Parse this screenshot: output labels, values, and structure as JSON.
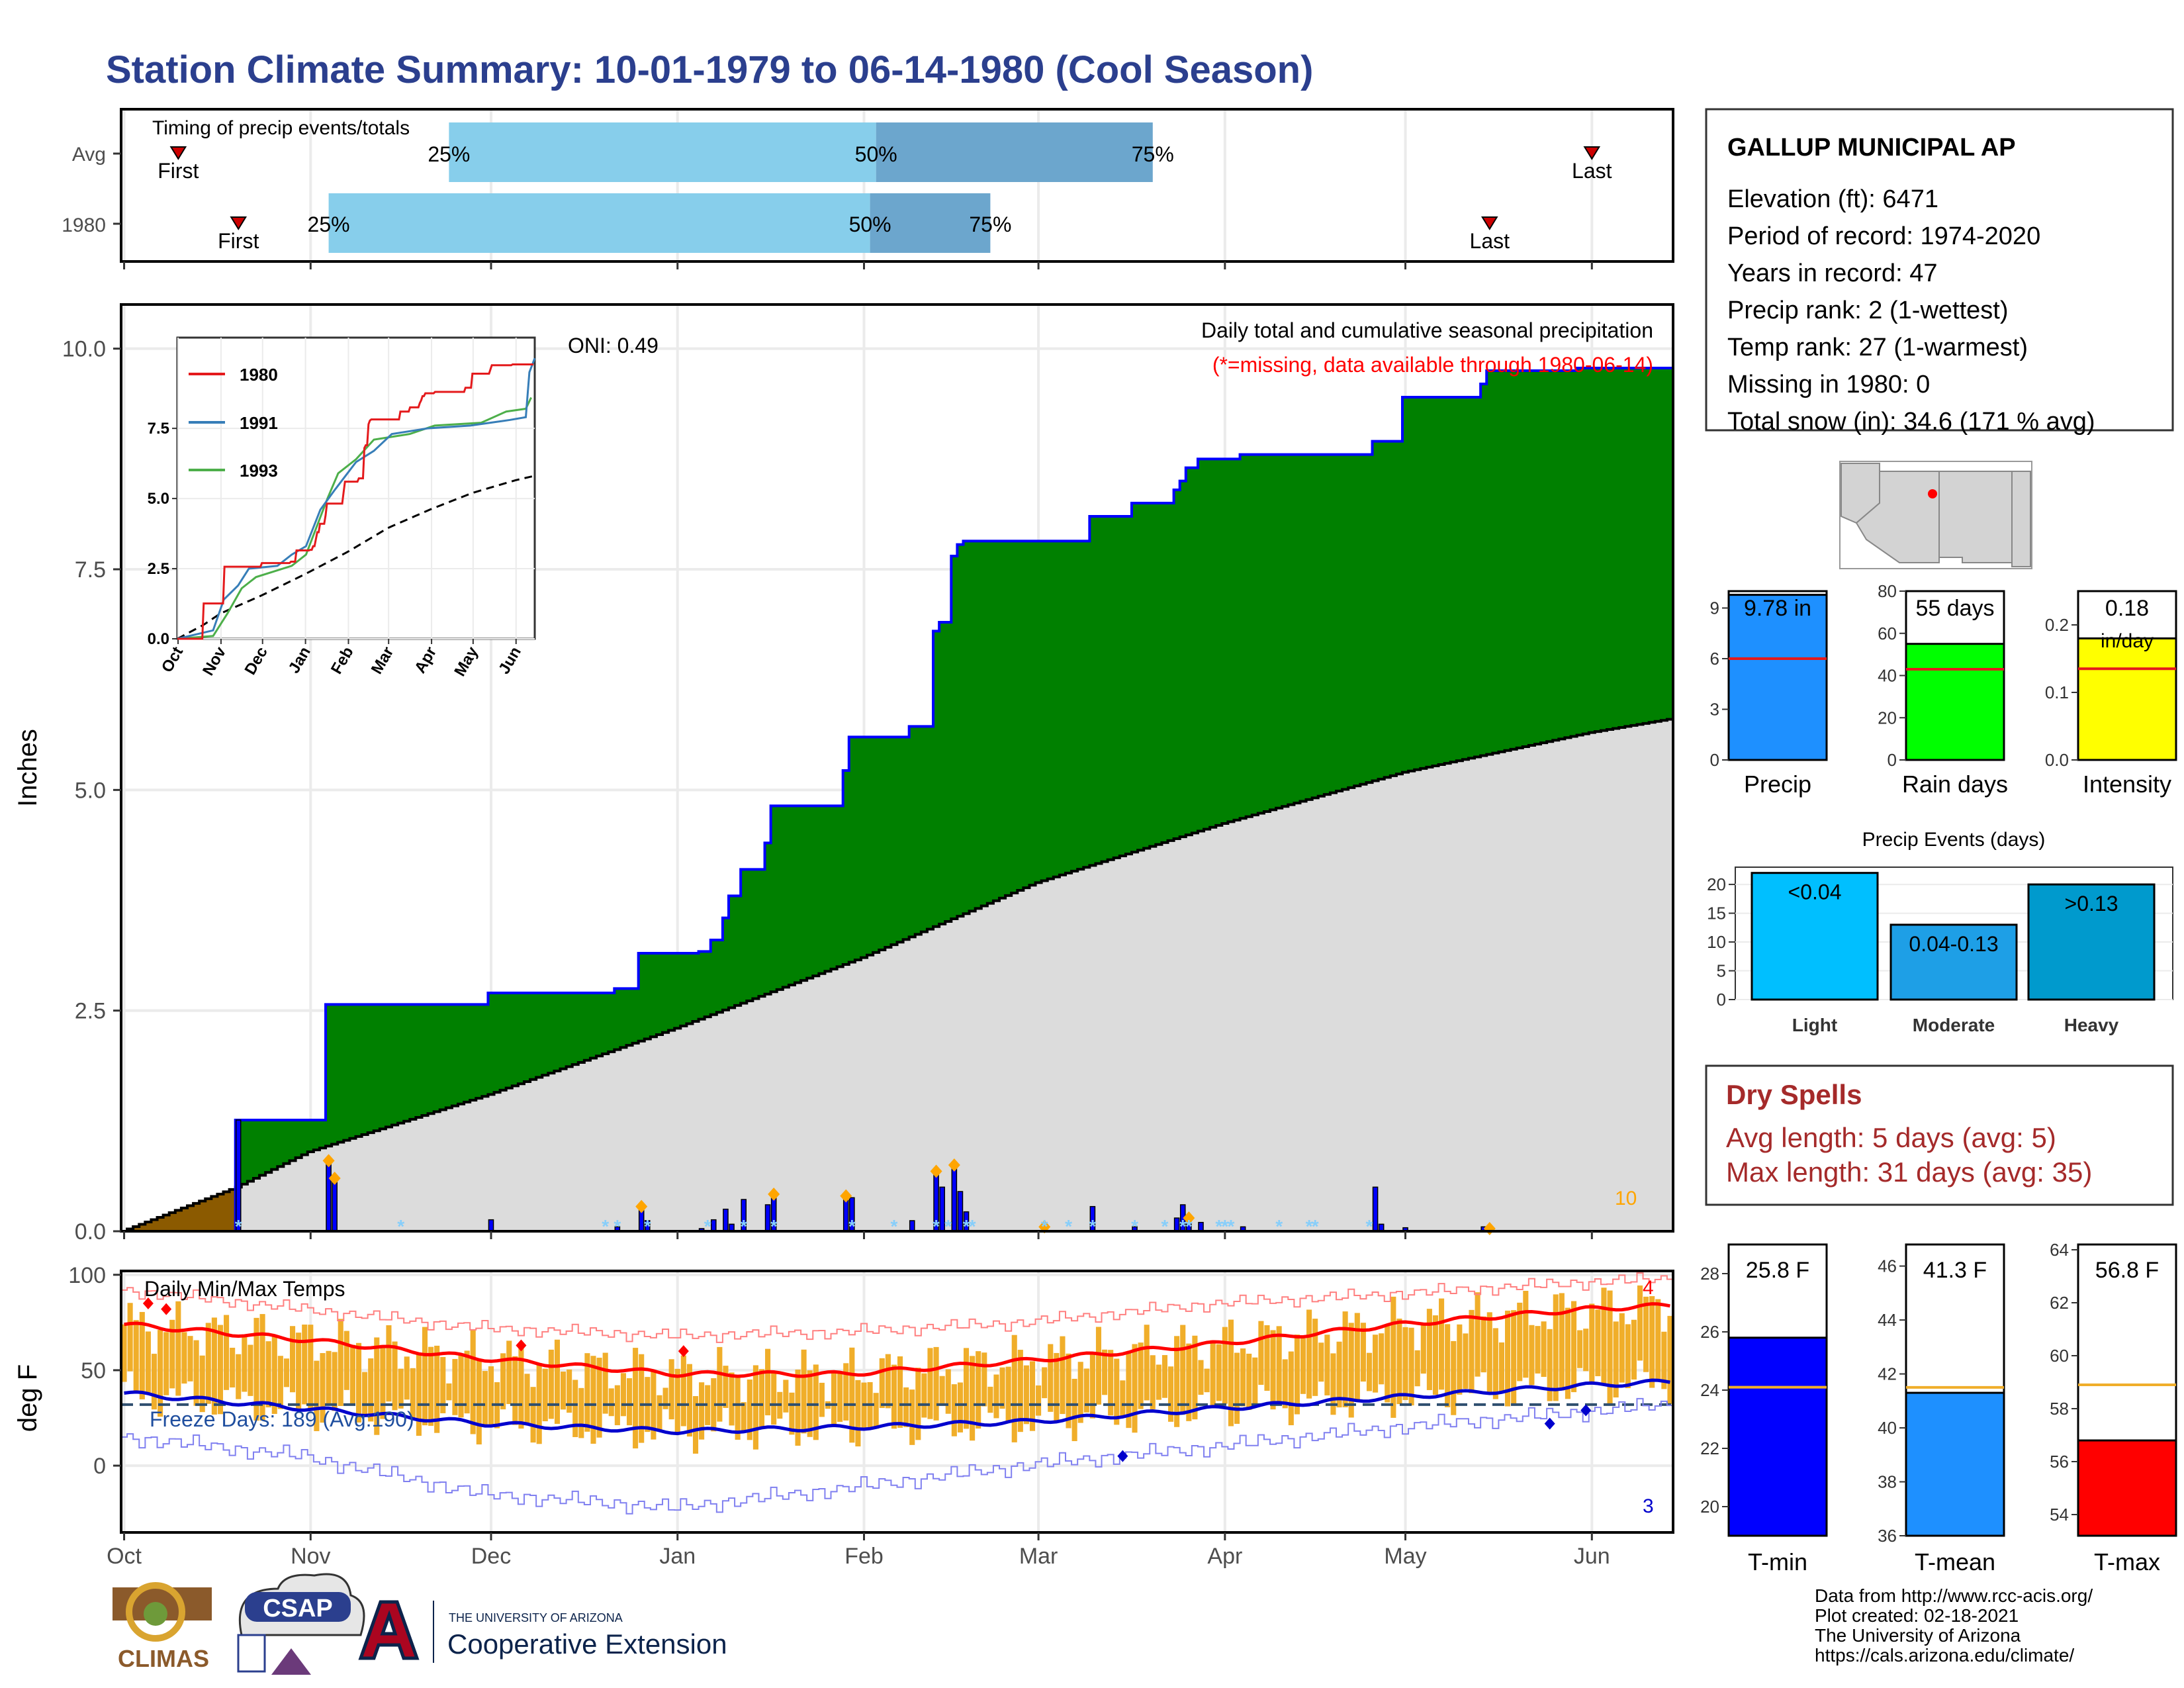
{
  "page": {
    "title": "Station Climate Summary: 10-01-1979 to 06-14-1980 (Cool Season)",
    "title_color": "#2B3F8E"
  },
  "timing": {
    "label": "Timing of precip events/totals",
    "rows": [
      {
        "label": "Avg",
        "first_date": "1979-10-10",
        "p25_date": "1979-11-24",
        "p50_date": "1980-02-03",
        "p75_date": "1980-03-20",
        "last_date": "1980-06-01"
      },
      {
        "label": "1980",
        "first_date": "1979-10-20",
        "p25_date": "1979-11-04",
        "p50_date": "1980-02-02",
        "p75_date": "1980-02-22",
        "last_date": "1980-05-15"
      }
    ],
    "first_label": "First",
    "last_label": "Last",
    "p25_label": "25%",
    "p50_label": "50%",
    "p75_label": "75%",
    "light_color": "#87CEEB",
    "dark_color": "#6CA6CD"
  },
  "precip": {
    "ylabel": "Inches",
    "ylim": [
      0,
      10.5
    ],
    "yticks": [
      0.0,
      2.5,
      5.0,
      7.5,
      10.0
    ],
    "ytick_labels": [
      "0.0",
      "2.5",
      "5.0",
      "7.5",
      "10.0"
    ],
    "oni_label": "ONI: 0.49",
    "note1": "Daily total and cumulative seasonal precipitation",
    "note2": "(*=missing, data available through 1980-06-14)",
    "note2_color": "#FF0000",
    "corner_count": "10",
    "corner_count_color": "#FFA500",
    "fill_above_color": "#008000",
    "fill_below_color": "#DCDCDC",
    "fill_deficit_color": "#8B5A00",
    "cum_line_color": "#0000FF",
    "avg_line_color": "#000000",
    "bar_color": "#0000FF"
  },
  "months": {
    "labels": [
      "Oct",
      "Nov",
      "Dec",
      "Jan",
      "Feb",
      "Mar",
      "Apr",
      "May",
      "Jun"
    ],
    "dates": [
      "1979-10-01",
      "1979-11-01",
      "1979-12-01",
      "1980-01-01",
      "1980-02-01",
      "1980-03-01",
      "1980-04-01",
      "1980-05-01",
      "1980-06-01"
    ],
    "end_date": "1980-06-14"
  },
  "inset": {
    "yticks": [
      "0.0",
      "2.5",
      "5.0",
      "7.5"
    ],
    "xticks": [
      "Oct",
      "Nov",
      "Dec",
      "Jan",
      "Feb",
      "Mar",
      "Apr",
      "May",
      "Jun"
    ],
    "legend": [
      {
        "name": "1980",
        "color": "#E41A1C"
      },
      {
        "name": "1991",
        "color": "#377EB8"
      },
      {
        "name": "1993",
        "color": "#4DAF4A"
      }
    ]
  },
  "station": {
    "name": "GALLUP MUNICIPAL AP",
    "lines": [
      "Elevation (ft): 6471",
      "Period of record: 1974-2020",
      "Years in record: 47",
      "Precip rank: 2 (1-wettest)",
      "Temp rank: 27 (1-warmest)",
      "Missing in 1980: 0",
      "Total snow (in): 34.6 (171 % avg)"
    ]
  },
  "summary_bars": [
    {
      "name": "Precip",
      "value": 9.78,
      "avg": 6.0,
      "ymax": 10.0,
      "ticks": [
        "0",
        "3",
        "6",
        "9"
      ],
      "tick_vals": [
        0,
        3,
        6,
        9
      ],
      "label": "9.78 in",
      "color": "#1E90FF"
    },
    {
      "name": "Rain days",
      "value": 55,
      "avg": 43,
      "ymax": 80,
      "ticks": [
        "0",
        "20",
        "40",
        "60",
        "80"
      ],
      "tick_vals": [
        0,
        20,
        40,
        60,
        80
      ],
      "label": "55 days",
      "color": "#00FF00"
    },
    {
      "name": "Intensity",
      "value": 0.18,
      "avg": 0.135,
      "ymax": 0.25,
      "ticks": [
        "0.0",
        "0.1",
        "0.2"
      ],
      "tick_vals": [
        0,
        0.1,
        0.2
      ],
      "label": "0.18",
      "label2": "in/day",
      "color": "#FFFF00"
    }
  ],
  "events": {
    "title": "Precip Events (days)",
    "categories": [
      "Light",
      "Moderate",
      "Heavy"
    ],
    "values": [
      22,
      13,
      20
    ],
    "labels": [
      "<0.04",
      "0.04-0.13",
      ">0.13"
    ],
    "ticks": [
      "0",
      "5",
      "10",
      "15",
      "20"
    ],
    "colors": [
      "#00BFFF",
      "#1E9FE6",
      "#009ACD"
    ]
  },
  "dry": {
    "title": "Dry Spells",
    "avg_line": "Avg length: 5 days (avg: 5)",
    "max_line": "Max length: 31 days (avg: 35)",
    "color": "#A52A2A"
  },
  "temps": {
    "label": "Daily Min/Max Temps",
    "ylabel": "deg F",
    "ylim": [
      -35,
      102
    ],
    "yticks": [
      0,
      50,
      100
    ],
    "ytick_labels": [
      "0",
      "50",
      "100"
    ],
    "freeze_label": "Freeze Days: 189 (Avg:190)",
    "freeze_color": "#1F4E9E",
    "top_count": "4",
    "bottom_count": "3",
    "bar_color": "#F0AE2A",
    "max_avg_color": "#FF0000",
    "min_avg_color": "#0000CD",
    "record_max_color": "#FF8080",
    "record_min_color": "#8080F0"
  },
  "temp_bars": [
    {
      "name": "T-min",
      "value": 25.8,
      "avg": 24.1,
      "ymin": 19.0,
      "ymax": 29.0,
      "ticks": [
        "20",
        "22",
        "24",
        "26",
        "28"
      ],
      "tick_vals": [
        20,
        22,
        24,
        26,
        28
      ],
      "label": "25.8 F",
      "color": "#0000FF"
    },
    {
      "name": "T-mean",
      "value": 41.3,
      "avg": 41.5,
      "ymin": 36.0,
      "ymax": 46.8,
      "ticks": [
        "36",
        "38",
        "40",
        "42",
        "44",
        "46"
      ],
      "tick_vals": [
        36,
        38,
        40,
        42,
        44,
        46
      ],
      "label": "41.3 F",
      "color": "#1E90FF"
    },
    {
      "name": "T-max",
      "value": 56.8,
      "avg": 58.9,
      "ymin": 53.2,
      "ymax": 64.2,
      "ticks": [
        "54",
        "56",
        "58",
        "60",
        "62",
        "64"
      ],
      "tick_vals": [
        54,
        56,
        58,
        60,
        62,
        64
      ],
      "label": "56.8 F",
      "color": "#FF0000"
    }
  ],
  "credits": {
    "lines": [
      "Data from http://www.rcc-acis.org/",
      "Plot created: 02-18-2021",
      "The University of Arizona",
      "https://cals.arizona.edu/climate/"
    ],
    "climas": "CLIMAS",
    "csap": "CSAP",
    "ua_small": "THE UNIVERSITY OF ARIZONA",
    "ua_big": "Cooperative Extension"
  },
  "chart_data": {
    "type": "area",
    "title": "Daily total and cumulative seasonal precipitation",
    "ylabel": "Inches",
    "ylim": [
      0,
      10.5
    ],
    "cumulative_steps": [
      {
        "date": "1979-10-20",
        "value": 1.26
      },
      {
        "date": "1979-11-04",
        "value": 2.57
      },
      {
        "date": "1979-12-01",
        "value": 2.7
      },
      {
        "date": "1979-12-22",
        "value": 2.75
      },
      {
        "date": "1979-12-26",
        "value": 3.15
      },
      {
        "date": "1980-01-05",
        "value": 3.17
      },
      {
        "date": "1980-01-07",
        "value": 3.3
      },
      {
        "date": "1980-01-09",
        "value": 3.55
      },
      {
        "date": "1980-01-10",
        "value": 3.8
      },
      {
        "date": "1980-01-12",
        "value": 4.1
      },
      {
        "date": "1980-01-16",
        "value": 4.4
      },
      {
        "date": "1980-01-17",
        "value": 4.82
      },
      {
        "date": "1980-01-29",
        "value": 5.22
      },
      {
        "date": "1980-01-30",
        "value": 5.6
      },
      {
        "date": "1980-02-09",
        "value": 5.72
      },
      {
        "date": "1980-02-13",
        "value": 6.8
      },
      {
        "date": "1980-02-14",
        "value": 6.9
      },
      {
        "date": "1980-02-16",
        "value": 7.65
      },
      {
        "date": "1980-02-17",
        "value": 7.78
      },
      {
        "date": "1980-02-18",
        "value": 7.82
      },
      {
        "date": "1980-03-10",
        "value": 8.1
      },
      {
        "date": "1980-03-17",
        "value": 8.25
      },
      {
        "date": "1980-03-24",
        "value": 8.4
      },
      {
        "date": "1980-03-25",
        "value": 8.5
      },
      {
        "date": "1980-03-26",
        "value": 8.65
      },
      {
        "date": "1980-03-28",
        "value": 8.75
      },
      {
        "date": "1980-04-04",
        "value": 8.8
      },
      {
        "date": "1980-04-26",
        "value": 8.95
      },
      {
        "date": "1980-05-01",
        "value": 9.45
      },
      {
        "date": "1980-05-14",
        "value": 9.6
      },
      {
        "date": "1980-05-15",
        "value": 9.75
      },
      {
        "date": "1980-05-30",
        "value": 9.78
      }
    ],
    "avg_cumulative": [
      {
        "date": "1979-10-01",
        "value": 0.0
      },
      {
        "date": "1979-10-20",
        "value": 0.5
      },
      {
        "date": "1979-11-01",
        "value": 0.9
      },
      {
        "date": "1979-12-01",
        "value": 1.55
      },
      {
        "date": "1980-01-01",
        "value": 2.3
      },
      {
        "date": "1980-02-01",
        "value": 3.1
      },
      {
        "date": "1980-03-01",
        "value": 3.95
      },
      {
        "date": "1980-04-01",
        "value": 4.62
      },
      {
        "date": "1980-05-01",
        "value": 5.2
      },
      {
        "date": "1980-06-01",
        "value": 5.65
      },
      {
        "date": "1980-06-14",
        "value": 5.8
      }
    ],
    "daily": [
      {
        "date": "1979-10-20",
        "value": 1.26
      },
      {
        "date": "1979-11-04",
        "value": 0.8
      },
      {
        "date": "1979-11-05",
        "value": 0.6
      },
      {
        "date": "1979-12-01",
        "value": 0.13
      },
      {
        "date": "1979-12-22",
        "value": 0.05
      },
      {
        "date": "1979-12-26",
        "value": 0.28
      },
      {
        "date": "1979-12-27",
        "value": 0.12
      },
      {
        "date": "1980-01-05",
        "value": 0.03
      },
      {
        "date": "1980-01-07",
        "value": 0.13
      },
      {
        "date": "1980-01-09",
        "value": 0.25
      },
      {
        "date": "1980-01-10",
        "value": 0.08
      },
      {
        "date": "1980-01-12",
        "value": 0.36
      },
      {
        "date": "1980-01-16",
        "value": 0.3
      },
      {
        "date": "1980-01-17",
        "value": 0.42
      },
      {
        "date": "1980-01-29",
        "value": 0.4
      },
      {
        "date": "1980-01-30",
        "value": 0.38
      },
      {
        "date": "1980-02-09",
        "value": 0.12
      },
      {
        "date": "1980-02-13",
        "value": 0.68
      },
      {
        "date": "1980-02-14",
        "value": 0.5
      },
      {
        "date": "1980-02-16",
        "value": 0.75
      },
      {
        "date": "1980-02-17",
        "value": 0.45
      },
      {
        "date": "1980-02-18",
        "value": 0.22
      },
      {
        "date": "1980-03-10",
        "value": 0.28
      },
      {
        "date": "1980-03-17",
        "value": 0.05
      },
      {
        "date": "1980-03-24",
        "value": 0.15
      },
      {
        "date": "1980-03-25",
        "value": 0.3
      },
      {
        "date": "1980-03-26",
        "value": 0.15
      },
      {
        "date": "1980-03-28",
        "value": 0.1
      },
      {
        "date": "1980-04-04",
        "value": 0.05
      },
      {
        "date": "1980-04-26",
        "value": 0.5
      },
      {
        "date": "1980-04-27",
        "value": 0.08
      },
      {
        "date": "1980-05-01",
        "value": 0.04
      },
      {
        "date": "1980-05-14",
        "value": 0.05
      },
      {
        "date": "1980-05-15",
        "value": 0.03
      }
    ],
    "orange_markers": [
      "1979-11-04",
      "1979-11-05",
      "1979-12-26",
      "1980-01-17",
      "1980-01-29",
      "1980-02-13",
      "1980-02-16",
      "1980-03-02",
      "1980-03-26",
      "1980-05-15"
    ],
    "snow_markers": [
      "1979-10-20",
      "1979-11-16",
      "1979-12-20",
      "1979-12-22",
      "1979-12-27",
      "1980-01-06",
      "1980-01-12",
      "1980-01-17",
      "1980-01-30",
      "1980-02-06",
      "1980-02-13",
      "1980-02-15",
      "1980-02-18",
      "1980-02-19",
      "1980-03-02",
      "1980-03-06",
      "1980-03-10",
      "1980-03-17",
      "1980-03-22",
      "1980-03-25",
      "1980-03-26",
      "1980-03-31",
      "1980-04-01",
      "1980-04-02",
      "1980-04-10",
      "1980-04-15",
      "1980-04-16",
      "1980-04-25"
    ],
    "temps": {
      "max_avg": [
        [
          0,
          74
        ],
        [
          30,
          66
        ],
        [
          60,
          56
        ],
        [
          92,
          48
        ],
        [
          120,
          48
        ],
        [
          150,
          55
        ],
        [
          182,
          64
        ],
        [
          212,
          74
        ],
        [
          243,
          82
        ],
        [
          257,
          84
        ]
      ],
      "min_avg": [
        [
          0,
          38
        ],
        [
          30,
          30
        ],
        [
          60,
          22
        ],
        [
          92,
          18
        ],
        [
          120,
          20
        ],
        [
          150,
          23
        ],
        [
          182,
          30
        ],
        [
          212,
          36
        ],
        [
          243,
          42
        ],
        [
          257,
          44
        ]
      ],
      "record_max": [
        [
          0,
          92
        ],
        [
          30,
          82
        ],
        [
          60,
          72
        ],
        [
          92,
          68
        ],
        [
          120,
          70
        ],
        [
          150,
          75
        ],
        [
          182,
          85
        ],
        [
          212,
          90
        ],
        [
          243,
          96
        ],
        [
          257,
          98
        ]
      ],
      "record_min": [
        [
          0,
          15
        ],
        [
          30,
          5
        ],
        [
          60,
          -15
        ],
        [
          92,
          -22
        ],
        [
          120,
          -12
        ],
        [
          150,
          0
        ],
        [
          182,
          10
        ],
        [
          212,
          20
        ],
        [
          243,
          28
        ],
        [
          257,
          32
        ]
      ],
      "record_high_markers": [
        [
          4,
          85
        ],
        [
          7,
          82
        ],
        [
          66,
          63
        ],
        [
          93,
          60
        ]
      ],
      "record_low_markers": [
        [
          166,
          5
        ],
        [
          237,
          22
        ],
        [
          243,
          29
        ]
      ]
    }
  }
}
